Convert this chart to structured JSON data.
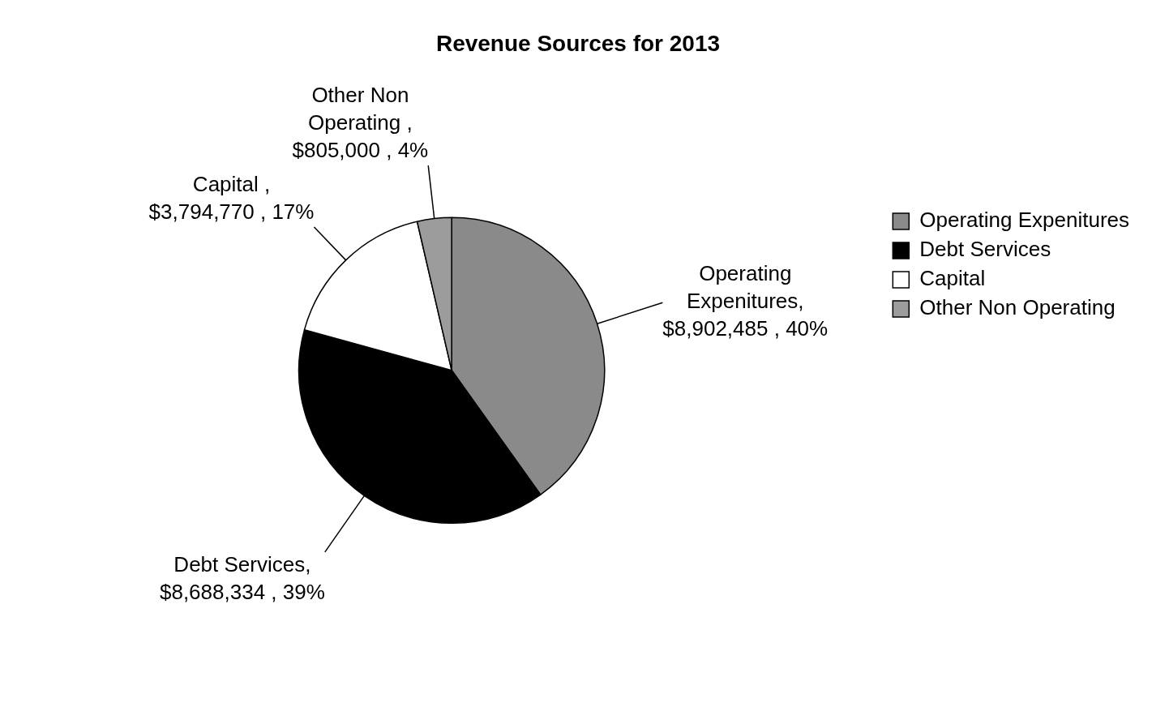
{
  "chart_data": {
    "type": "pie",
    "title": "Revenue Sources for 2013",
    "categories": [
      "Operating Expenitures",
      "Debt Services",
      "Capital",
      "Other Non Operating"
    ],
    "values": [
      8902485,
      8688334,
      3794770,
      805000
    ],
    "colors": [
      "#8a8a8a",
      "#000000",
      "#ffffff",
      "#9c9c9c"
    ],
    "value_labels": [
      "Operating Expenitures, $8,902,485 , 40%",
      "Debt Services, $8,688,334 , 39%",
      "Capital , $3,794,770 , 17%",
      "Other Non Operating , $805,000 , 4%"
    ],
    "legend": "right"
  }
}
